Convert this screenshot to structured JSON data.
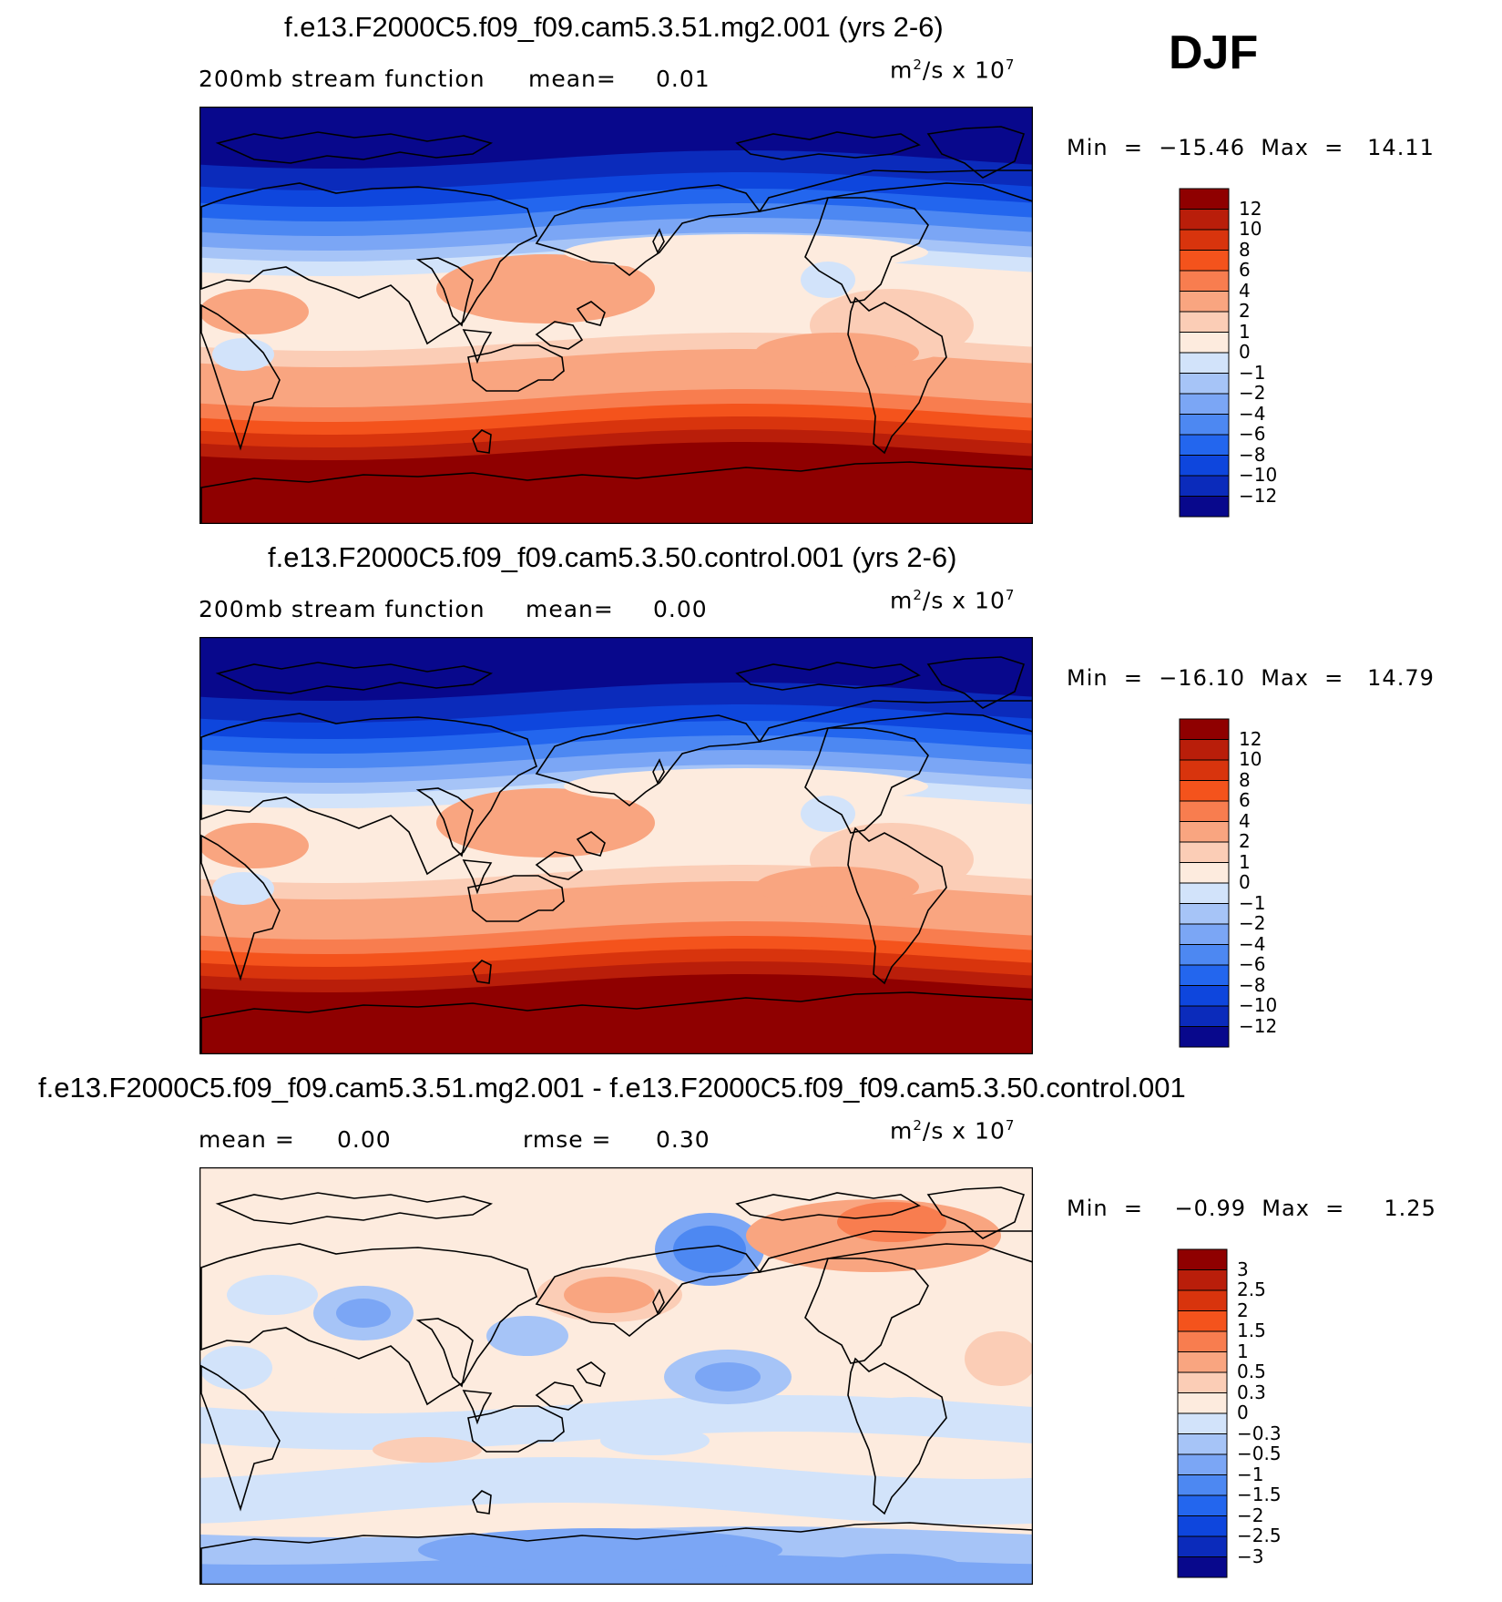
{
  "season": "DJF",
  "colors": {
    "level_colors": [
      "#08088c",
      "#0b2bbb",
      "#0e46dd",
      "#2366ee",
      "#4d88f2",
      "#7ba6f5",
      "#a6c4f7",
      "#d2e3fa",
      "#fdebde",
      "#fbcdb6",
      "#f9a580",
      "#f87d4f",
      "#f4531c",
      "#d8340d",
      "#b91e0a",
      "#8f0000"
    ],
    "coastline": "#000000"
  },
  "units": [
    "m",
    "2",
    "/s  x  10",
    "7"
  ],
  "chart_data": [
    {
      "type": "heatmap",
      "title": "f.e13.F2000C5.f09_f09.cam5.3.51.mg2.001 (yrs 2-6)",
      "left_label": "200mb  stream  function",
      "stat_label": "mean=",
      "stat_value": "0.01",
      "minmax": "Min  =  −15.46  Max  =   14.11",
      "min": -15.46,
      "max": 14.11,
      "colorbar_ticks": [
        "12",
        "10",
        "8",
        "6",
        "4",
        "2",
        "1",
        "0",
        "−1",
        "−2",
        "−4",
        "−6",
        "−8",
        "−10",
        "−12"
      ],
      "levels": [
        -12,
        -10,
        -8,
        -6,
        -4,
        -2,
        -1,
        0,
        1,
        2,
        4,
        6,
        8,
        10,
        12
      ]
    },
    {
      "type": "heatmap",
      "title": "f.e13.F2000C5.f09_f09.cam5.3.50.control.001 (yrs 2-6)",
      "left_label": "200mb  stream  function",
      "stat_label": "mean=",
      "stat_value": "0.00",
      "minmax": "Min  =  −16.10  Max  =   14.79",
      "min": -16.1,
      "max": 14.79,
      "colorbar_ticks": [
        "12",
        "10",
        "8",
        "6",
        "4",
        "2",
        "1",
        "0",
        "−1",
        "−2",
        "−4",
        "−6",
        "−8",
        "−10",
        "−12"
      ],
      "levels": [
        -12,
        -10,
        -8,
        -6,
        -4,
        -2,
        -1,
        0,
        1,
        2,
        4,
        6,
        8,
        10,
        12
      ]
    },
    {
      "type": "heatmap",
      "title": "f.e13.F2000C5.f09_f09.cam5.3.51.mg2.001 - f.e13.F2000C5.f09_f09.cam5.3.50.control.001",
      "left_label": "mean  =",
      "left_value": "0.00",
      "stat_label": "rmse  =",
      "stat_value": "0.30",
      "minmax": "Min  =    −0.99  Max  =     1.25",
      "min": -0.99,
      "max": 1.25,
      "colorbar_ticks": [
        "3",
        "2.5",
        "2",
        "1.5",
        "1",
        "0.5",
        "0.3",
        "0",
        "−0.3",
        "−0.5",
        "−1",
        "−1.5",
        "−2",
        "−2.5",
        "−3"
      ],
      "levels": [
        -3,
        -2.5,
        -2,
        -1.5,
        -1,
        -0.5,
        -0.3,
        0,
        0.3,
        0.5,
        1,
        1.5,
        2,
        2.5,
        3
      ]
    }
  ]
}
